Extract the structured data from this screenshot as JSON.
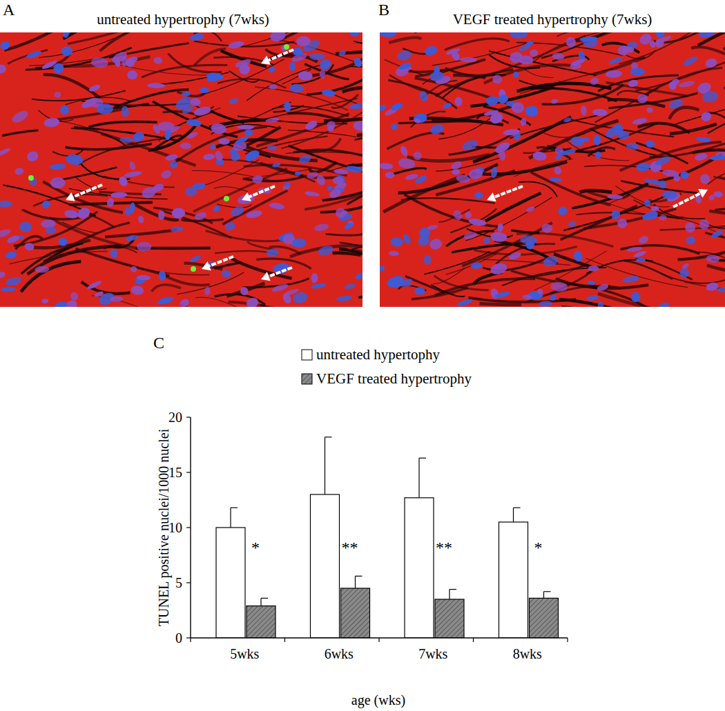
{
  "figure": {
    "panels": [
      {
        "label": "A",
        "title": "untreated hypertrophy (7wks)"
      },
      {
        "label": "B",
        "title": "VEGF treated hypertrophy (7wks)"
      },
      {
        "label": "C"
      }
    ]
  },
  "chart_data": {
    "type": "bar",
    "categories": [
      "5wks",
      "6wks",
      "7wks",
      "8wks"
    ],
    "series": [
      {
        "name": "untreated hypertophy",
        "color": "#ffffff",
        "values": [
          10.0,
          13.0,
          12.7,
          10.5
        ],
        "errors": [
          1.8,
          5.2,
          3.6,
          1.3
        ]
      },
      {
        "name": "VEGF treated hypertrophy",
        "color": "#8a8a8a",
        "values": [
          2.9,
          4.5,
          3.5,
          3.6
        ],
        "errors": [
          0.7,
          1.1,
          0.9,
          0.6
        ]
      }
    ],
    "annotations": [
      "*",
      "**",
      "**",
      "*"
    ],
    "x_label": "age (wks)",
    "y_label": "TUNEL positive nuclei/1000 nuclei",
    "ylim": [
      0,
      20
    ],
    "yticks": [
      0,
      5,
      10,
      15,
      20
    ],
    "grid": false,
    "legend": "top"
  }
}
